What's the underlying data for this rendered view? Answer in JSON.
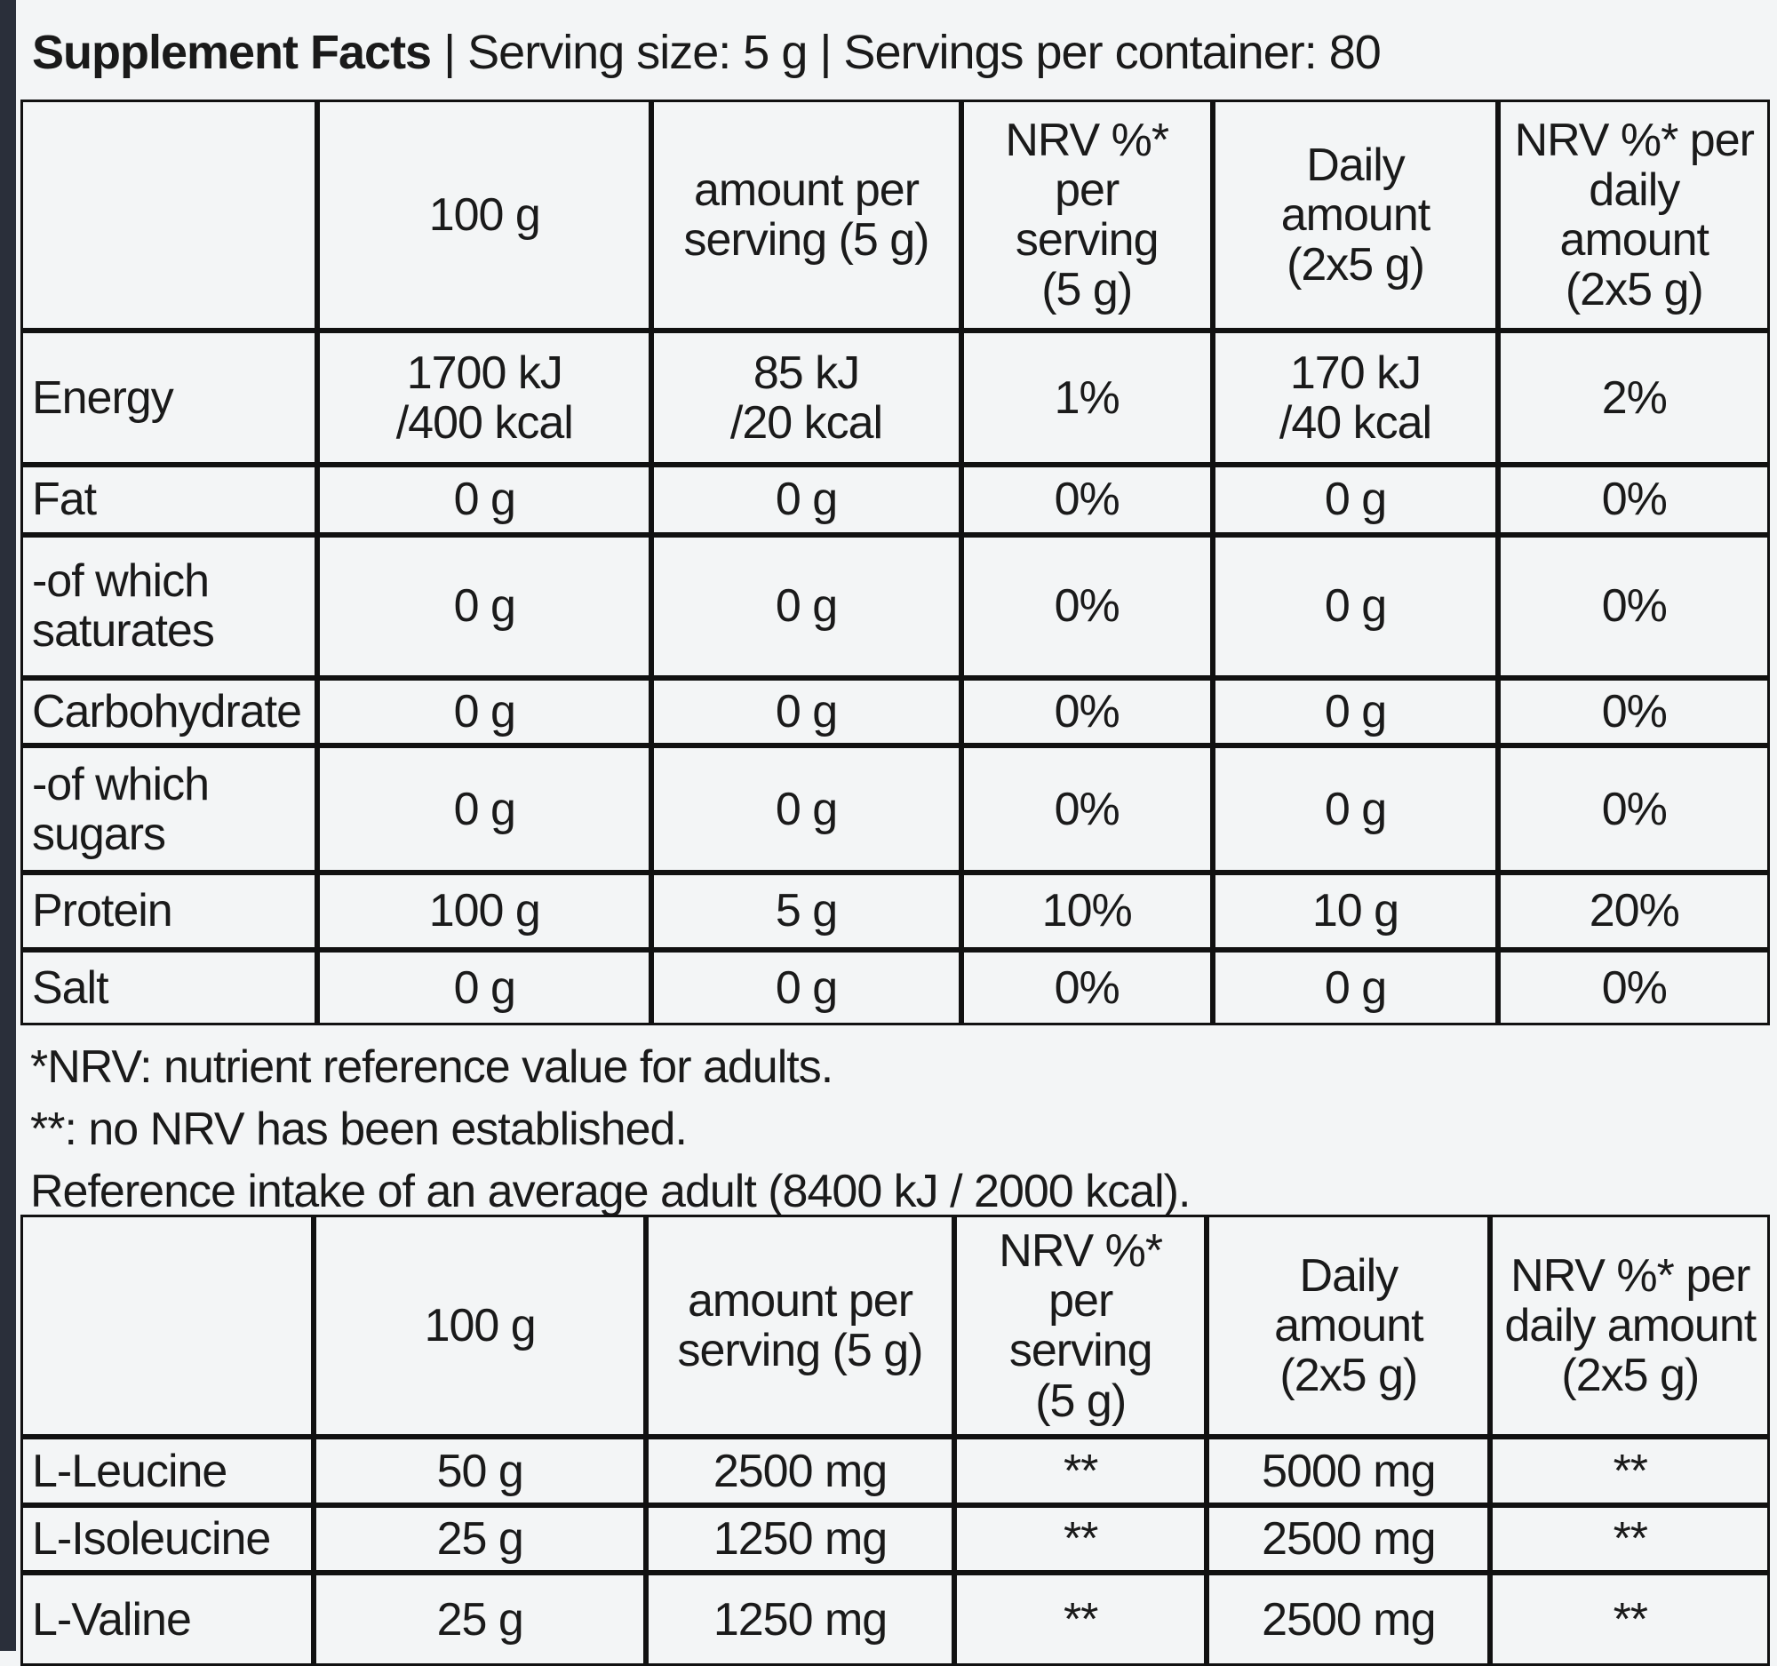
{
  "header": {
    "title": "Supplement Facts",
    "separator": "|",
    "serving_size": "Serving size: 5 g",
    "servings_per_container": "Servings per container: 80"
  },
  "table1": {
    "columns": [
      "100 g",
      "amount per\nserving (5 g)",
      "NRV %* per\nserving\n(5 g)",
      "Daily\namount\n(2x5 g)",
      "NRV %* per\ndaily amount\n(2x5 g)"
    ],
    "rows": [
      [
        "Energy",
        "1700 kJ\n/400 kcal",
        "85 kJ\n/20 kcal",
        "1%",
        "170 kJ\n/40 kcal",
        "2%"
      ],
      [
        "Fat",
        "0 g",
        "0 g",
        "0%",
        "0 g",
        "0%"
      ],
      [
        "-of which\nsaturates",
        "0 g",
        "0 g",
        "0%",
        "0 g",
        "0%"
      ],
      [
        "Carbohydrate",
        "0 g",
        "0 g",
        "0%",
        "0 g",
        "0%"
      ],
      [
        "-of which\nsugars",
        "0 g",
        "0 g",
        "0%",
        "0 g",
        "0%"
      ],
      [
        "Protein",
        "100 g",
        "5 g",
        "10%",
        "10 g",
        "20%"
      ],
      [
        "Salt",
        "0 g",
        "0 g",
        "0%",
        "0 g",
        "0%"
      ]
    ]
  },
  "notes": [
    "*NRV: nutrient reference value for adults.",
    "**: no NRV has been established.",
    "Reference intake of an average adult (8400 kJ / 2000 kcal)."
  ],
  "table2": {
    "columns": [
      "100 g",
      "amount per\nserving (5 g)",
      "NRV %* per\nserving\n(5 g)",
      "Daily\namount\n(2x5 g)",
      "NRV %* per\ndaily amount\n(2x5 g)"
    ],
    "rows": [
      [
        "L-Leucine",
        "50 g",
        "2500 mg",
        "**",
        "5000 mg",
        "**"
      ],
      [
        "L-Isoleucine",
        "25 g",
        "1250 mg",
        "**",
        "2500 mg",
        "**"
      ],
      [
        "L-Valine",
        "25 g",
        "1250 mg",
        "**",
        "2500 mg",
        "**"
      ]
    ]
  }
}
